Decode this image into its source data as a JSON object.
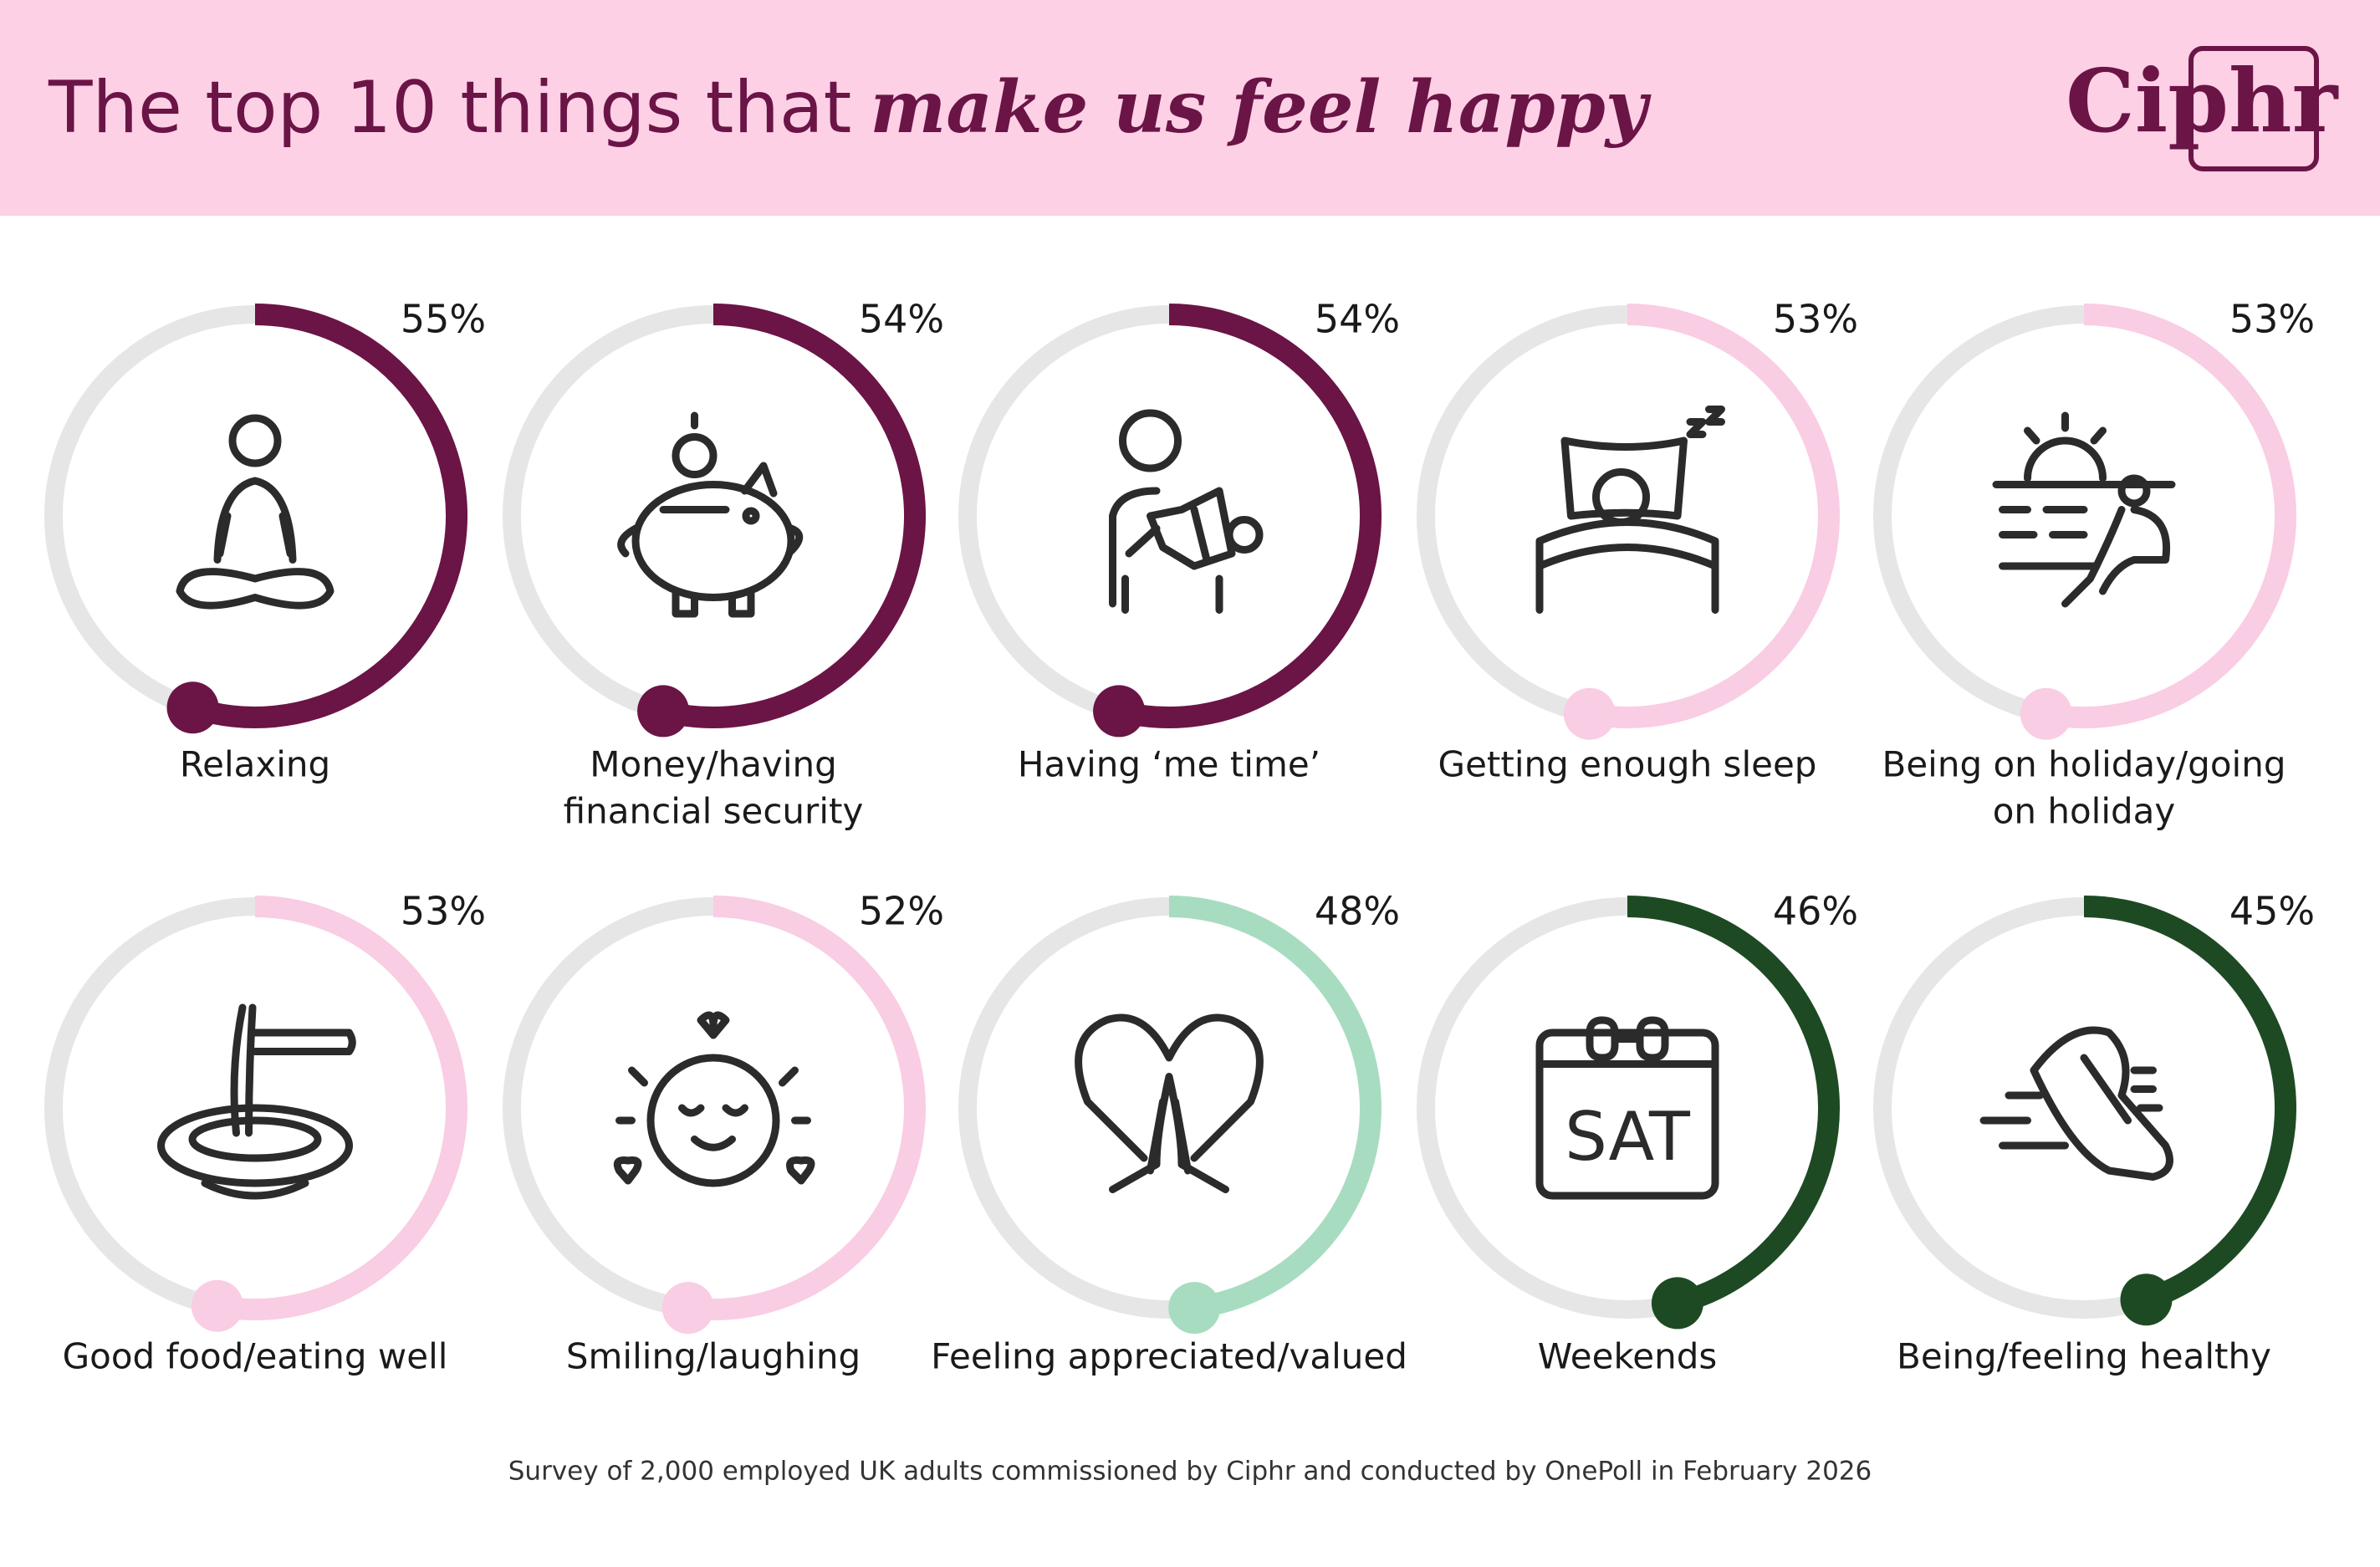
{
  "chart_data": {
    "type": "gauge",
    "title": "The top 10 things that",
    "title_emphasis": "make us feel happy",
    "brand": "Ciphr",
    "categories": [
      [
        "Relaxing"
      ],
      [
        "Money/having",
        "financial security"
      ],
      [
        "Having ‘me time’"
      ],
      [
        "Getting enough sleep"
      ],
      [
        "Being on holiday/going",
        "on holiday"
      ],
      [
        "Good food/eating well"
      ],
      [
        "Smiling/laughing"
      ],
      [
        "Feeling appreciated/valued"
      ],
      [
        "Weekends"
      ],
      [
        "Being/feeling healthy"
      ]
    ],
    "values": [
      55,
      54,
      54,
      53,
      53,
      53,
      52,
      48,
      46,
      45
    ],
    "value_labels": [
      "55%",
      "54%",
      "54%",
      "53%",
      "53%",
      "53%",
      "52%",
      "48%",
      "46%",
      "45%"
    ],
    "colors": [
      "#6b1446",
      "#6b1446",
      "#6b1446",
      "#f9cde3",
      "#f9cde3",
      "#f9cde3",
      "#f9cde3",
      "#a8dcc0",
      "#1e4a23",
      "#1e4a23"
    ],
    "ylim": [
      0,
      100
    ],
    "calendar_icon_text": "SAT",
    "source": "Survey of 2,000 employed UK adults commissioned by Ciphr and conducted by OnePoll in February 2026"
  }
}
